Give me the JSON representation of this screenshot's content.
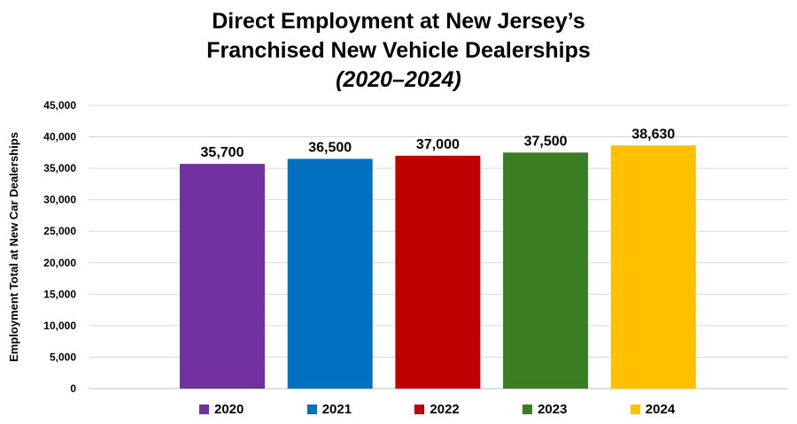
{
  "chart_data": {
    "type": "bar",
    "title_lines": [
      "Direct Employment at New Jersey’s",
      "Franchised New Vehicle Dealerships"
    ],
    "subtitle": "(2020–2024)",
    "ylabel": "Employment Total at New Car Dealerships",
    "xlabel": "",
    "categories": [
      "2020",
      "2021",
      "2022",
      "2023",
      "2024"
    ],
    "values": [
      35700,
      36500,
      37000,
      37500,
      38630
    ],
    "value_labels": [
      "35,700",
      "36,500",
      "37,000",
      "37,500",
      "38,630"
    ],
    "colors": [
      "#7030A0",
      "#0070C0",
      "#C00000",
      "#3A7D22",
      "#FFC000"
    ],
    "ylim": [
      0,
      45000
    ],
    "yticks": [
      0,
      5000,
      10000,
      15000,
      20000,
      25000,
      30000,
      35000,
      40000,
      45000
    ],
    "ytick_labels": [
      "0",
      "5,000",
      "10,000",
      "15,000",
      "20,000",
      "25,000",
      "30,000",
      "35,000",
      "40,000",
      "45,000"
    ],
    "grid": true,
    "legend_position": "bottom"
  }
}
